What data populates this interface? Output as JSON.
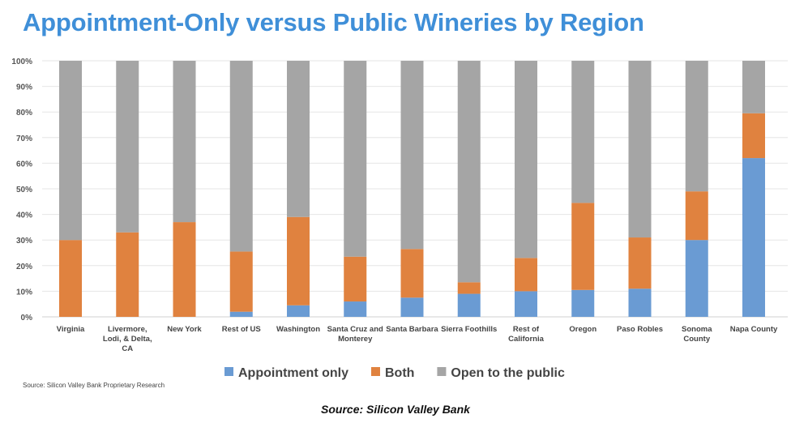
{
  "chart_data": {
    "type": "bar",
    "stacked": true,
    "title": "Appointment-Only versus Public Wineries by Region",
    "xlabel": "",
    "ylabel": "",
    "ylim": [
      0,
      100
    ],
    "yticks": [
      "0%",
      "10%",
      "20%",
      "30%",
      "40%",
      "50%",
      "60%",
      "70%",
      "80%",
      "90%",
      "100%"
    ],
    "grid": true,
    "legend_position": "bottom",
    "categories": [
      [
        "Virginia"
      ],
      [
        "Livermore,",
        "Lodi, & Delta,",
        "CA"
      ],
      [
        "New York"
      ],
      [
        "Rest of US"
      ],
      [
        "Washington"
      ],
      [
        "Santa Cruz and",
        "Monterey"
      ],
      [
        "Santa Barbara"
      ],
      [
        "Sierra Foothills"
      ],
      [
        "Rest of",
        "California"
      ],
      [
        "Oregon"
      ],
      [
        "Paso Robles"
      ],
      [
        "Sonoma",
        "County"
      ],
      [
        "Napa County"
      ]
    ],
    "series": [
      {
        "name": "Appointment only",
        "color": "#6a9bd3",
        "values": [
          0,
          0,
          0,
          2,
          4.5,
          6,
          7.5,
          9,
          10,
          10.5,
          11,
          30,
          62
        ]
      },
      {
        "name": "Both",
        "color": "#e0823f",
        "values": [
          30,
          33,
          37,
          23.5,
          34.5,
          17.5,
          19,
          4.5,
          13,
          34,
          20,
          19,
          17.5
        ]
      },
      {
        "name": "Open to the public",
        "color": "#a5a5a5",
        "values": [
          70,
          67,
          63,
          74.5,
          61,
          76.5,
          73.5,
          86.5,
          77,
          55.5,
          69,
          51,
          20.5
        ]
      }
    ]
  },
  "source_note": "Source: Silicon Valley Bank Proprietary Research",
  "caption": "Source: Silicon Valley Bank"
}
